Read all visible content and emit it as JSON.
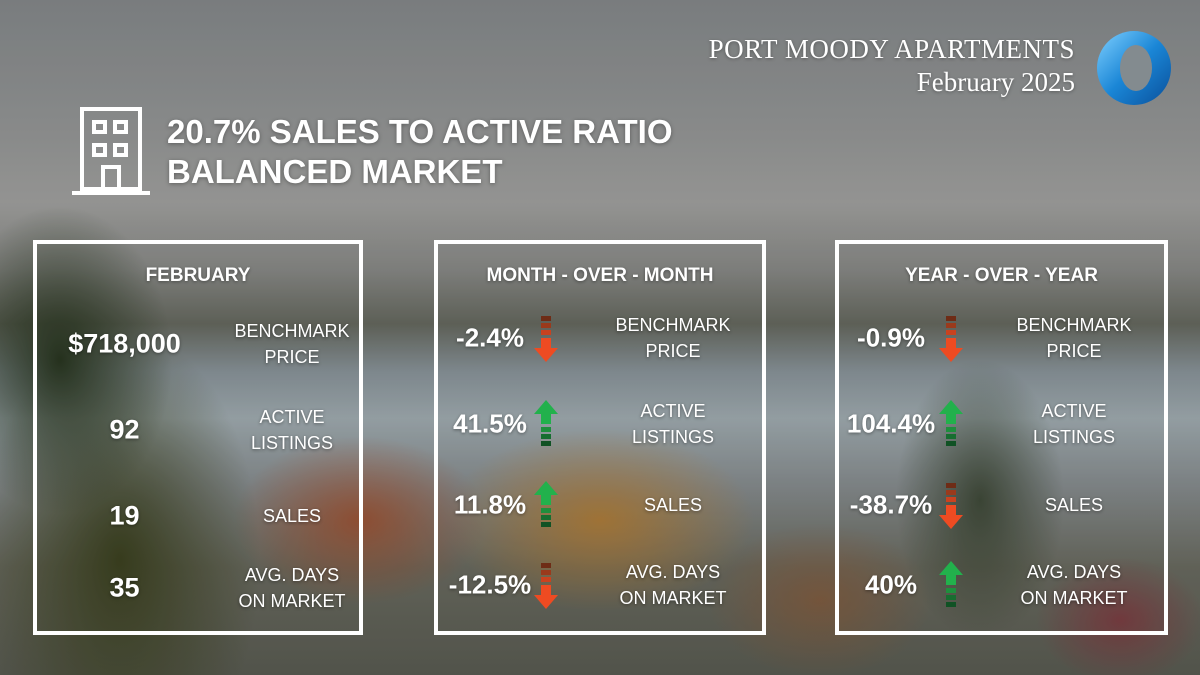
{
  "header": {
    "brand_title": "PORT MOODY APARTMENTS",
    "brand_date": "February 2025",
    "headline_line1": "20.7% SALES TO ACTIVE RATIO",
    "headline_line2": "BALANCED MARKET"
  },
  "icons": {
    "building": "building-icon",
    "logo": "ring-logo",
    "up": "arrow-up-icon",
    "down": "arrow-down-icon"
  },
  "colors": {
    "up": "#22b14c",
    "down": "#ee4b22",
    "logo_blue": "#1a86d6"
  },
  "february": {
    "title": "FEBRUARY",
    "rows": [
      {
        "value": "$718,000",
        "label1": "BENCHMARK",
        "label2": "PRICE"
      },
      {
        "value": "92",
        "label1": "ACTIVE",
        "label2": "LISTINGS"
      },
      {
        "value": "19",
        "label1": "SALES",
        "label2": ""
      },
      {
        "value": "35",
        "label1": "AVG. DAYS",
        "label2": "ON MARKET"
      }
    ]
  },
  "month_over_month": {
    "title": "MONTH - OVER - MONTH",
    "rows": [
      {
        "value": "-2.4%",
        "direction": "down",
        "label1": "BENCHMARK",
        "label2": "PRICE"
      },
      {
        "value": "41.5%",
        "direction": "up",
        "label1": "ACTIVE",
        "label2": "LISTINGS"
      },
      {
        "value": "11.8%",
        "direction": "up",
        "label1": "SALES",
        "label2": ""
      },
      {
        "value": "-12.5%",
        "direction": "down",
        "label1": "AVG. DAYS",
        "label2": "ON MARKET"
      }
    ]
  },
  "year_over_year": {
    "title": "YEAR - OVER - YEAR",
    "rows": [
      {
        "value": "-0.9%",
        "direction": "down",
        "label1": "BENCHMARK",
        "label2": "PRICE"
      },
      {
        "value": "104.4%",
        "direction": "up",
        "label1": "ACTIVE",
        "label2": "LISTINGS"
      },
      {
        "value": "-38.7%",
        "direction": "down",
        "label1": "SALES",
        "label2": ""
      },
      {
        "value": "40%",
        "direction": "up",
        "label1": "AVG. DAYS",
        "label2": "ON MARKET"
      }
    ]
  }
}
